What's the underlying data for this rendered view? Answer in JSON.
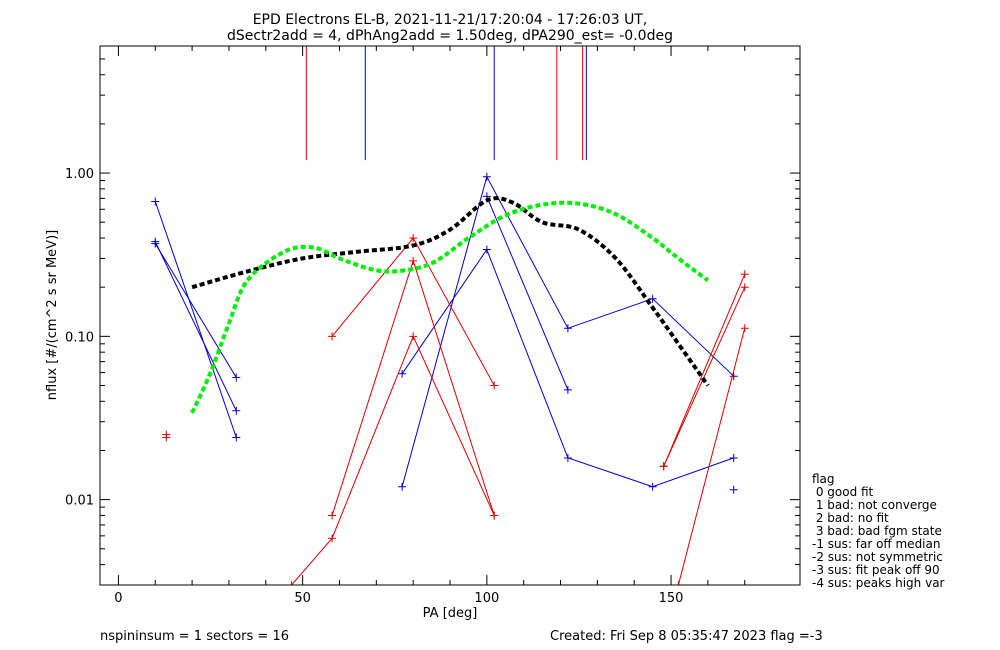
{
  "chart_data": {
    "type": "line",
    "title_line1": "EPD Electrons EL-B, 2021-11-21/17:20:04 - 17:26:03 UT,",
    "title_line2": "dSectr2add = 4, dPhAng2add = 1.50deg, dPA290_est=  -0.0deg",
    "xlabel": "PA [deg]",
    "ylabel": "nflux [#/(cm^2 s sr MeV)]",
    "xlim": [
      -5,
      185
    ],
    "ylim": [
      0.003,
      6
    ],
    "yscale": "log",
    "x_ticks": [
      0,
      50,
      100,
      150
    ],
    "x_tick_labels": [
      "0",
      "50",
      "100",
      "150"
    ],
    "y_ticks": [
      0.01,
      0.1,
      1.0
    ],
    "y_tick_labels": [
      "0.01",
      "0.10",
      "1.00"
    ],
    "vertical_markers": [
      {
        "x": 51,
        "color": "#dd0000"
      },
      {
        "x": 67,
        "color": "#0000cc"
      },
      {
        "x": 102,
        "color": "#0000cc"
      },
      {
        "x": 119,
        "color": "#dd0000"
      },
      {
        "x": 126,
        "color": "#dd0000"
      },
      {
        "x": 127,
        "color": "#0000cc"
      }
    ],
    "marker_y_range": [
      1.2,
      6
    ],
    "series": [
      {
        "color": "#0000cc",
        "x": [
          10,
          32
        ],
        "y": [
          0.67,
          0.024
        ]
      },
      {
        "color": "#0000cc",
        "x": [
          10,
          32
        ],
        "y": [
          0.38,
          0.035
        ]
      },
      {
        "color": "#0000cc",
        "x": [
          10,
          32
        ],
        "y": [
          0.37,
          0.056
        ]
      },
      {
        "color": "#0000cc",
        "x": [
          77,
          100,
          122,
          145,
          167
        ],
        "y": [
          0.012,
          0.95,
          0.112,
          0.17,
          0.057
        ]
      },
      {
        "color": "#0000cc",
        "x": [
          77,
          100,
          122,
          145,
          167
        ],
        "y": [
          0.059,
          0.34,
          0.018,
          0.012,
          0.018
        ]
      },
      {
        "color": "#0000cc",
        "x": [
          100,
          122
        ],
        "y": [
          0.72,
          0.047
        ]
      },
      {
        "color": "#0000cc",
        "x": [
          167
        ],
        "y": [
          0.0115
        ]
      },
      {
        "color": "#dd0000",
        "x": [
          13
        ],
        "y": [
          0.025
        ]
      },
      {
        "color": "#dd0000",
        "x": [
          13
        ],
        "y": [
          0.024
        ]
      },
      {
        "color": "#dd0000",
        "x": [
          58,
          80,
          102
        ],
        "y": [
          0.1,
          0.4,
          0.05
        ]
      },
      {
        "color": "#dd0000",
        "x": [
          58,
          80,
          102
        ],
        "y": [
          0.008,
          0.29,
          0.008
        ]
      },
      {
        "color": "#dd0000",
        "x": [
          47,
          58,
          80,
          102
        ],
        "y": [
          0.003,
          0.0058,
          0.1,
          0.008
        ]
      },
      {
        "color": "#dd0000",
        "x": [
          148,
          170
        ],
        "y": [
          0.016,
          0.24
        ]
      },
      {
        "color": "#dd0000",
        "x": [
          148,
          170
        ],
        "y": [
          0.016,
          0.2
        ]
      },
      {
        "color": "#dd0000",
        "x": [
          152,
          170
        ],
        "y": [
          0.003,
          0.112
        ]
      }
    ],
    "fits": [
      {
        "color": "#000000",
        "x": [
          20,
          35,
          50,
          65,
          80,
          90,
          100,
          107,
          115,
          125,
          135,
          145,
          152,
          160
        ],
        "y": [
          0.2,
          0.25,
          0.3,
          0.33,
          0.36,
          0.45,
          0.68,
          0.66,
          0.5,
          0.45,
          0.3,
          0.15,
          0.09,
          0.05
        ]
      },
      {
        "color": "#00ee00",
        "x": [
          20,
          25,
          30,
          35,
          45,
          53,
          60,
          68,
          75,
          85,
          95,
          105,
          115,
          125,
          135,
          145,
          152,
          160
        ],
        "y": [
          0.034,
          0.06,
          0.12,
          0.22,
          0.33,
          0.35,
          0.3,
          0.26,
          0.25,
          0.28,
          0.4,
          0.55,
          0.64,
          0.65,
          0.56,
          0.4,
          0.3,
          0.22
        ]
      }
    ],
    "legend": {
      "title": "flag",
      "items": [
        " 0 good fit",
        " 1 bad: not converge",
        " 2 bad: no fit",
        " 3 bad: bad fgm state",
        "-1 sus: far off median",
        "-2 sus: not symmetric",
        "-3 sus: fit peak off 90",
        "-4 sus: peaks high var"
      ]
    },
    "footer_left": "nspininsum =  1  sectors = 16",
    "footer_right": "Created: Fri Sep  8 05:35:47 2023   flag =-3"
  }
}
